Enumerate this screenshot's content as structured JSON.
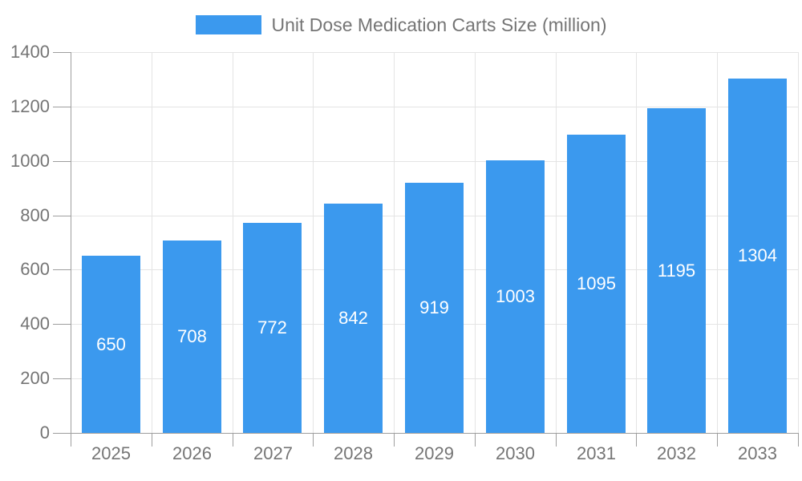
{
  "chart_data": {
    "type": "bar",
    "title": "",
    "series_name": "Unit Dose Medication Carts Size (million)",
    "categories": [
      "2025",
      "2026",
      "2027",
      "2028",
      "2029",
      "2030",
      "2031",
      "2032",
      "2033"
    ],
    "values": [
      650,
      708,
      772,
      842,
      919,
      1003,
      1095,
      1195,
      1304
    ],
    "xlabel": "",
    "ylabel": "",
    "ylim": [
      0,
      1400
    ],
    "yticks": [
      0,
      200,
      400,
      600,
      800,
      1000,
      1200,
      1400
    ],
    "grid": true,
    "legend_position": "top",
    "value_labels": "inside-center",
    "colors": {
      "bar": "#3B99EE",
      "grid": "#E4E4E4",
      "axis": "#9E9E9E",
      "tick_text": "#757575",
      "legend_text": "#757575",
      "value_label_text": "#FFFFFF",
      "background": "#FFFFFF"
    }
  }
}
